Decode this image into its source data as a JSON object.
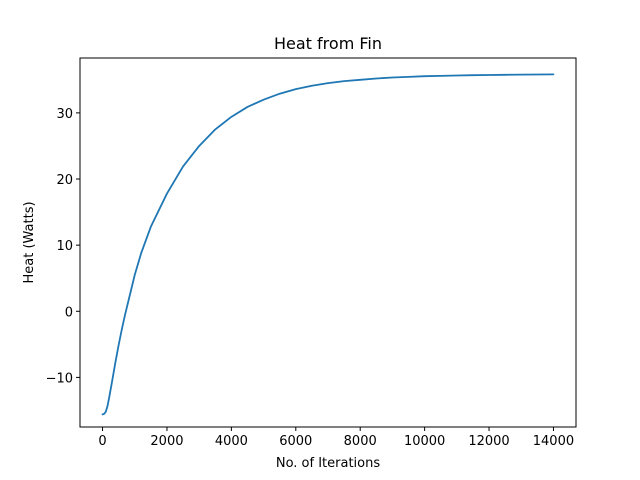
{
  "chart_data": {
    "type": "line",
    "title": "Heat from Fin",
    "xlabel": "No. of Iterations",
    "ylabel": "Heat (Watts)",
    "xlim": [
      -700,
      14700
    ],
    "ylim": [
      -17.5,
      38.3
    ],
    "grid": false,
    "x_ticks": [
      0,
      2000,
      4000,
      6000,
      8000,
      10000,
      12000,
      14000
    ],
    "x_tick_labels": [
      "0",
      "2000",
      "4000",
      "6000",
      "8000",
      "10000",
      "12000",
      "14000"
    ],
    "y_ticks": [
      -10,
      0,
      10,
      20,
      30
    ],
    "y_tick_labels": [
      "−10",
      "0",
      "10",
      "20",
      "30"
    ],
    "series": [
      {
        "color": "#1f77b4",
        "x": [
          0,
          50,
          100,
          150,
          200,
          300,
          400,
          500,
          600,
          700,
          800,
          1000,
          1200,
          1500,
          2000,
          2500,
          3000,
          3500,
          4000,
          4500,
          5000,
          5500,
          6000,
          6500,
          7000,
          7500,
          8000,
          8500,
          9000,
          9500,
          10000,
          10500,
          11000,
          11500,
          12000,
          12500,
          13000,
          13500,
          14000
        ],
        "y": [
          -15.6,
          -15.5,
          -15.2,
          -14.4,
          -13.2,
          -10.5,
          -7.7,
          -5.1,
          -2.7,
          -0.5,
          1.5,
          5.5,
          8.8,
          12.8,
          17.8,
          21.9,
          25.0,
          27.5,
          29.4,
          30.9,
          32.0,
          32.9,
          33.6,
          34.1,
          34.5,
          34.8,
          35.0,
          35.2,
          35.35,
          35.45,
          35.55,
          35.6,
          35.65,
          35.7,
          35.73,
          35.76,
          35.78,
          35.8,
          35.82
        ]
      }
    ]
  }
}
